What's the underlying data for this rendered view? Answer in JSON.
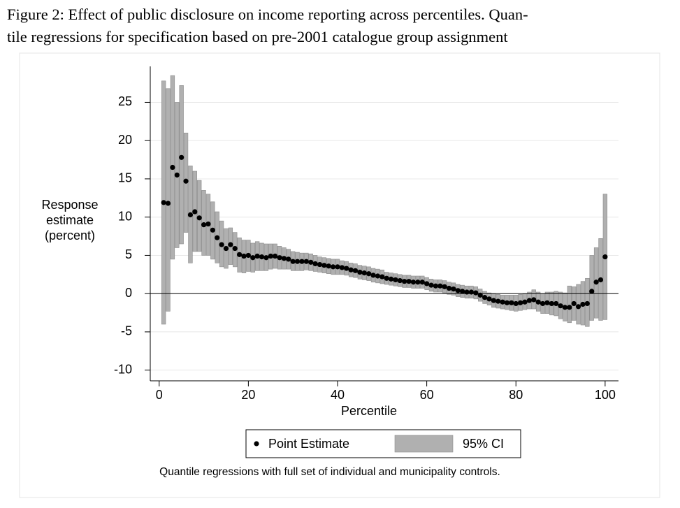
{
  "chart_data": {
    "type": "quantile_ci",
    "title": [
      "Figure 2: Effect of public disclosure on income reporting across percentiles. Quan-",
      "tile regressions for specification based on pre-2001 catalogue group assignment"
    ],
    "y_label": [
      "Response",
      "estimate",
      "(percent)"
    ],
    "x_label": "Percentile",
    "note": "Quantile regressions with full set of individual and municipality controls.",
    "xlim": [
      -2,
      103
    ],
    "ylim": [
      -11.4,
      29.7
    ],
    "xticks": [
      0,
      20,
      40,
      60,
      80,
      100
    ],
    "yticks": [
      -10,
      -5,
      0,
      5,
      10,
      15,
      20,
      25
    ],
    "grid": true,
    "reference_line": 0,
    "x": [
      1,
      2,
      3,
      4,
      5,
      6,
      7,
      8,
      9,
      10,
      11,
      12,
      13,
      14,
      15,
      16,
      17,
      18,
      19,
      20,
      21,
      22,
      23,
      24,
      25,
      26,
      27,
      28,
      29,
      30,
      31,
      32,
      33,
      34,
      35,
      36,
      37,
      38,
      39,
      40,
      41,
      42,
      43,
      44,
      45,
      46,
      47,
      48,
      49,
      50,
      51,
      52,
      53,
      54,
      55,
      56,
      57,
      58,
      59,
      60,
      61,
      62,
      63,
      64,
      65,
      66,
      67,
      68,
      69,
      70,
      71,
      72,
      73,
      74,
      75,
      76,
      77,
      78,
      79,
      80,
      81,
      82,
      83,
      84,
      85,
      86,
      87,
      88,
      89,
      90,
      91,
      92,
      93,
      94,
      95,
      96,
      97,
      98,
      99,
      100
    ],
    "series": [
      {
        "name": "Point Estimate",
        "color": "#000000",
        "values": [
          11.9,
          11.8,
          16.5,
          15.5,
          17.8,
          14.7,
          10.3,
          10.7,
          9.9,
          9.0,
          9.1,
          8.3,
          7.3,
          6.4,
          5.9,
          6.4,
          5.9,
          5.1,
          4.9,
          5.0,
          4.7,
          4.9,
          4.8,
          4.7,
          4.9,
          4.9,
          4.7,
          4.6,
          4.5,
          4.2,
          4.2,
          4.2,
          4.2,
          4.1,
          3.9,
          3.8,
          3.7,
          3.6,
          3.5,
          3.5,
          3.4,
          3.3,
          3.1,
          3.0,
          2.8,
          2.7,
          2.6,
          2.4,
          2.3,
          2.2,
          2.0,
          1.9,
          1.8,
          1.7,
          1.6,
          1.6,
          1.5,
          1.5,
          1.5,
          1.3,
          1.1,
          1.0,
          1.0,
          0.9,
          0.7,
          0.6,
          0.4,
          0.3,
          0.2,
          0.2,
          0.1,
          -0.2,
          -0.5,
          -0.7,
          -0.9,
          -1.0,
          -1.1,
          -1.2,
          -1.2,
          -1.3,
          -1.2,
          -1.1,
          -0.9,
          -0.8,
          -1.1,
          -1.3,
          -1.2,
          -1.3,
          -1.3,
          -1.6,
          -1.8,
          -1.8,
          -1.3,
          -1.7,
          -1.4,
          -1.3,
          0.3,
          1.5,
          1.8,
          4.8
        ]
      },
      {
        "name": "95% CI",
        "color": "#b0b0b0",
        "lower": [
          -4,
          -2.3,
          4.5,
          6,
          6.5,
          8,
          4,
          5.5,
          5.5,
          5,
          5,
          4.5,
          4,
          3.5,
          3.3,
          3.8,
          3.5,
          2.8,
          2.7,
          2.9,
          2.8,
          3,
          3,
          3,
          3.2,
          3.3,
          3.2,
          3.2,
          3.2,
          3,
          3,
          3,
          3.1,
          3,
          2.9,
          2.8,
          2.7,
          2.6,
          2.5,
          2.5,
          2.5,
          2.4,
          2.2,
          2.1,
          1.9,
          1.8,
          1.7,
          1.5,
          1.4,
          1.3,
          1.2,
          1.1,
          1.0,
          0.9,
          0.8,
          0.8,
          0.7,
          0.7,
          0.7,
          0.5,
          0.3,
          0.2,
          0.2,
          0.1,
          -0.1,
          -0.2,
          -0.4,
          -0.5,
          -0.6,
          -0.6,
          -0.7,
          -1.0,
          -1.3,
          -1.5,
          -1.8,
          -1.9,
          -2,
          -2.1,
          -2.2,
          -2.3,
          -2.2,
          -2.1,
          -2,
          -2,
          -2.3,
          -2.6,
          -2.6,
          -2.8,
          -2.9,
          -3.3,
          -3.6,
          -3.8,
          -3.5,
          -4.0,
          -4.1,
          -4.3,
          -3.5,
          -3.2,
          -3.5,
          -3.4
        ],
        "upper": [
          27.8,
          26.8,
          28.5,
          25,
          27.2,
          21,
          16.7,
          16,
          14.8,
          13.5,
          13,
          12,
          10.7,
          9.5,
          8.5,
          8.6,
          8,
          7.3,
          7,
          7,
          6.6,
          6.8,
          6.6,
          6.5,
          6.5,
          6.5,
          6.2,
          6,
          5.8,
          5.5,
          5.4,
          5.3,
          5.3,
          5.2,
          5,
          4.8,
          4.7,
          4.6,
          4.5,
          4.5,
          4.3,
          4.2,
          4,
          3.9,
          3.7,
          3.6,
          3.5,
          3.3,
          3.2,
          3.1,
          2.8,
          2.7,
          2.6,
          2.5,
          2.4,
          2.4,
          2.3,
          2.3,
          2.3,
          2.1,
          1.9,
          1.8,
          1.8,
          1.7,
          1.5,
          1.4,
          1.2,
          1.1,
          1.0,
          1.0,
          0.9,
          0.6,
          0.3,
          0.1,
          0,
          -0.1,
          -0.2,
          -0.2,
          -0.2,
          -0.2,
          -0.1,
          0,
          0.2,
          0.5,
          0.2,
          0,
          0.2,
          0.2,
          0.3,
          0.2,
          0.1,
          1.0,
          0.9,
          1.2,
          1.6,
          2.0,
          5.0,
          6.0,
          7.2,
          13
        ]
      }
    ]
  }
}
